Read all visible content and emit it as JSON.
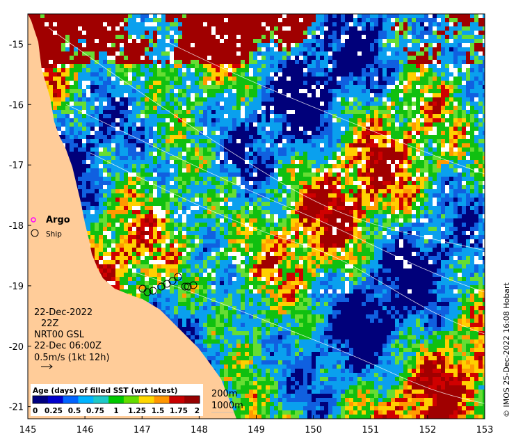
{
  "map": {
    "x_ticks": [
      "145",
      "146",
      "147",
      "148",
      "149",
      "150",
      "151",
      "152",
      "153"
    ],
    "y_ticks": [
      "-15",
      "-16",
      "-17",
      "-18",
      "-19",
      "-20",
      "-21"
    ],
    "lon_range": [
      145,
      153
    ],
    "lat_range": [
      -21.2,
      -14.5
    ]
  },
  "legend_markers": {
    "argo_label": "Argo",
    "ship_label": "Ship",
    "argo_color": "#ff00ff"
  },
  "info_box": {
    "date": "22-Dec-2022",
    "hour": "22Z",
    "product": "NRT00 GSL",
    "current_time": "22-Dec 06:00Z",
    "vector_scale": "0.5m/s (1kt 12h)"
  },
  "colorbar": {
    "title": "Age (days) of filled SST (wrt latest)",
    "tick_labels": [
      "0",
      "0.25",
      "0.5",
      "0.75",
      "1",
      "1.25",
      "1.5",
      "1.75",
      "2"
    ],
    "range": [
      0,
      2
    ],
    "colors": [
      "#000080",
      "#0000cd",
      "#0064ff",
      "#00b4ff",
      "#1ec8c8",
      "#00c800",
      "#64dc00",
      "#ffd700",
      "#ff9600",
      "#c80000",
      "#960000"
    ]
  },
  "contours": {
    "label_200": "200m",
    "label_1000": "1000m"
  },
  "credit": "© IMOS 25-Dec-2022 16:08 Hobart",
  "palette": {
    "land": "#ffcc99",
    "dark_red": "#a00000",
    "red": "#d00000",
    "yellow": "#ffd000",
    "orange": "#ff9a00",
    "green": "#10c010",
    "light_green": "#66dd33",
    "light_blue": "#0aa0ee",
    "mid_blue": "#1060e0",
    "navy": "#00007a"
  }
}
